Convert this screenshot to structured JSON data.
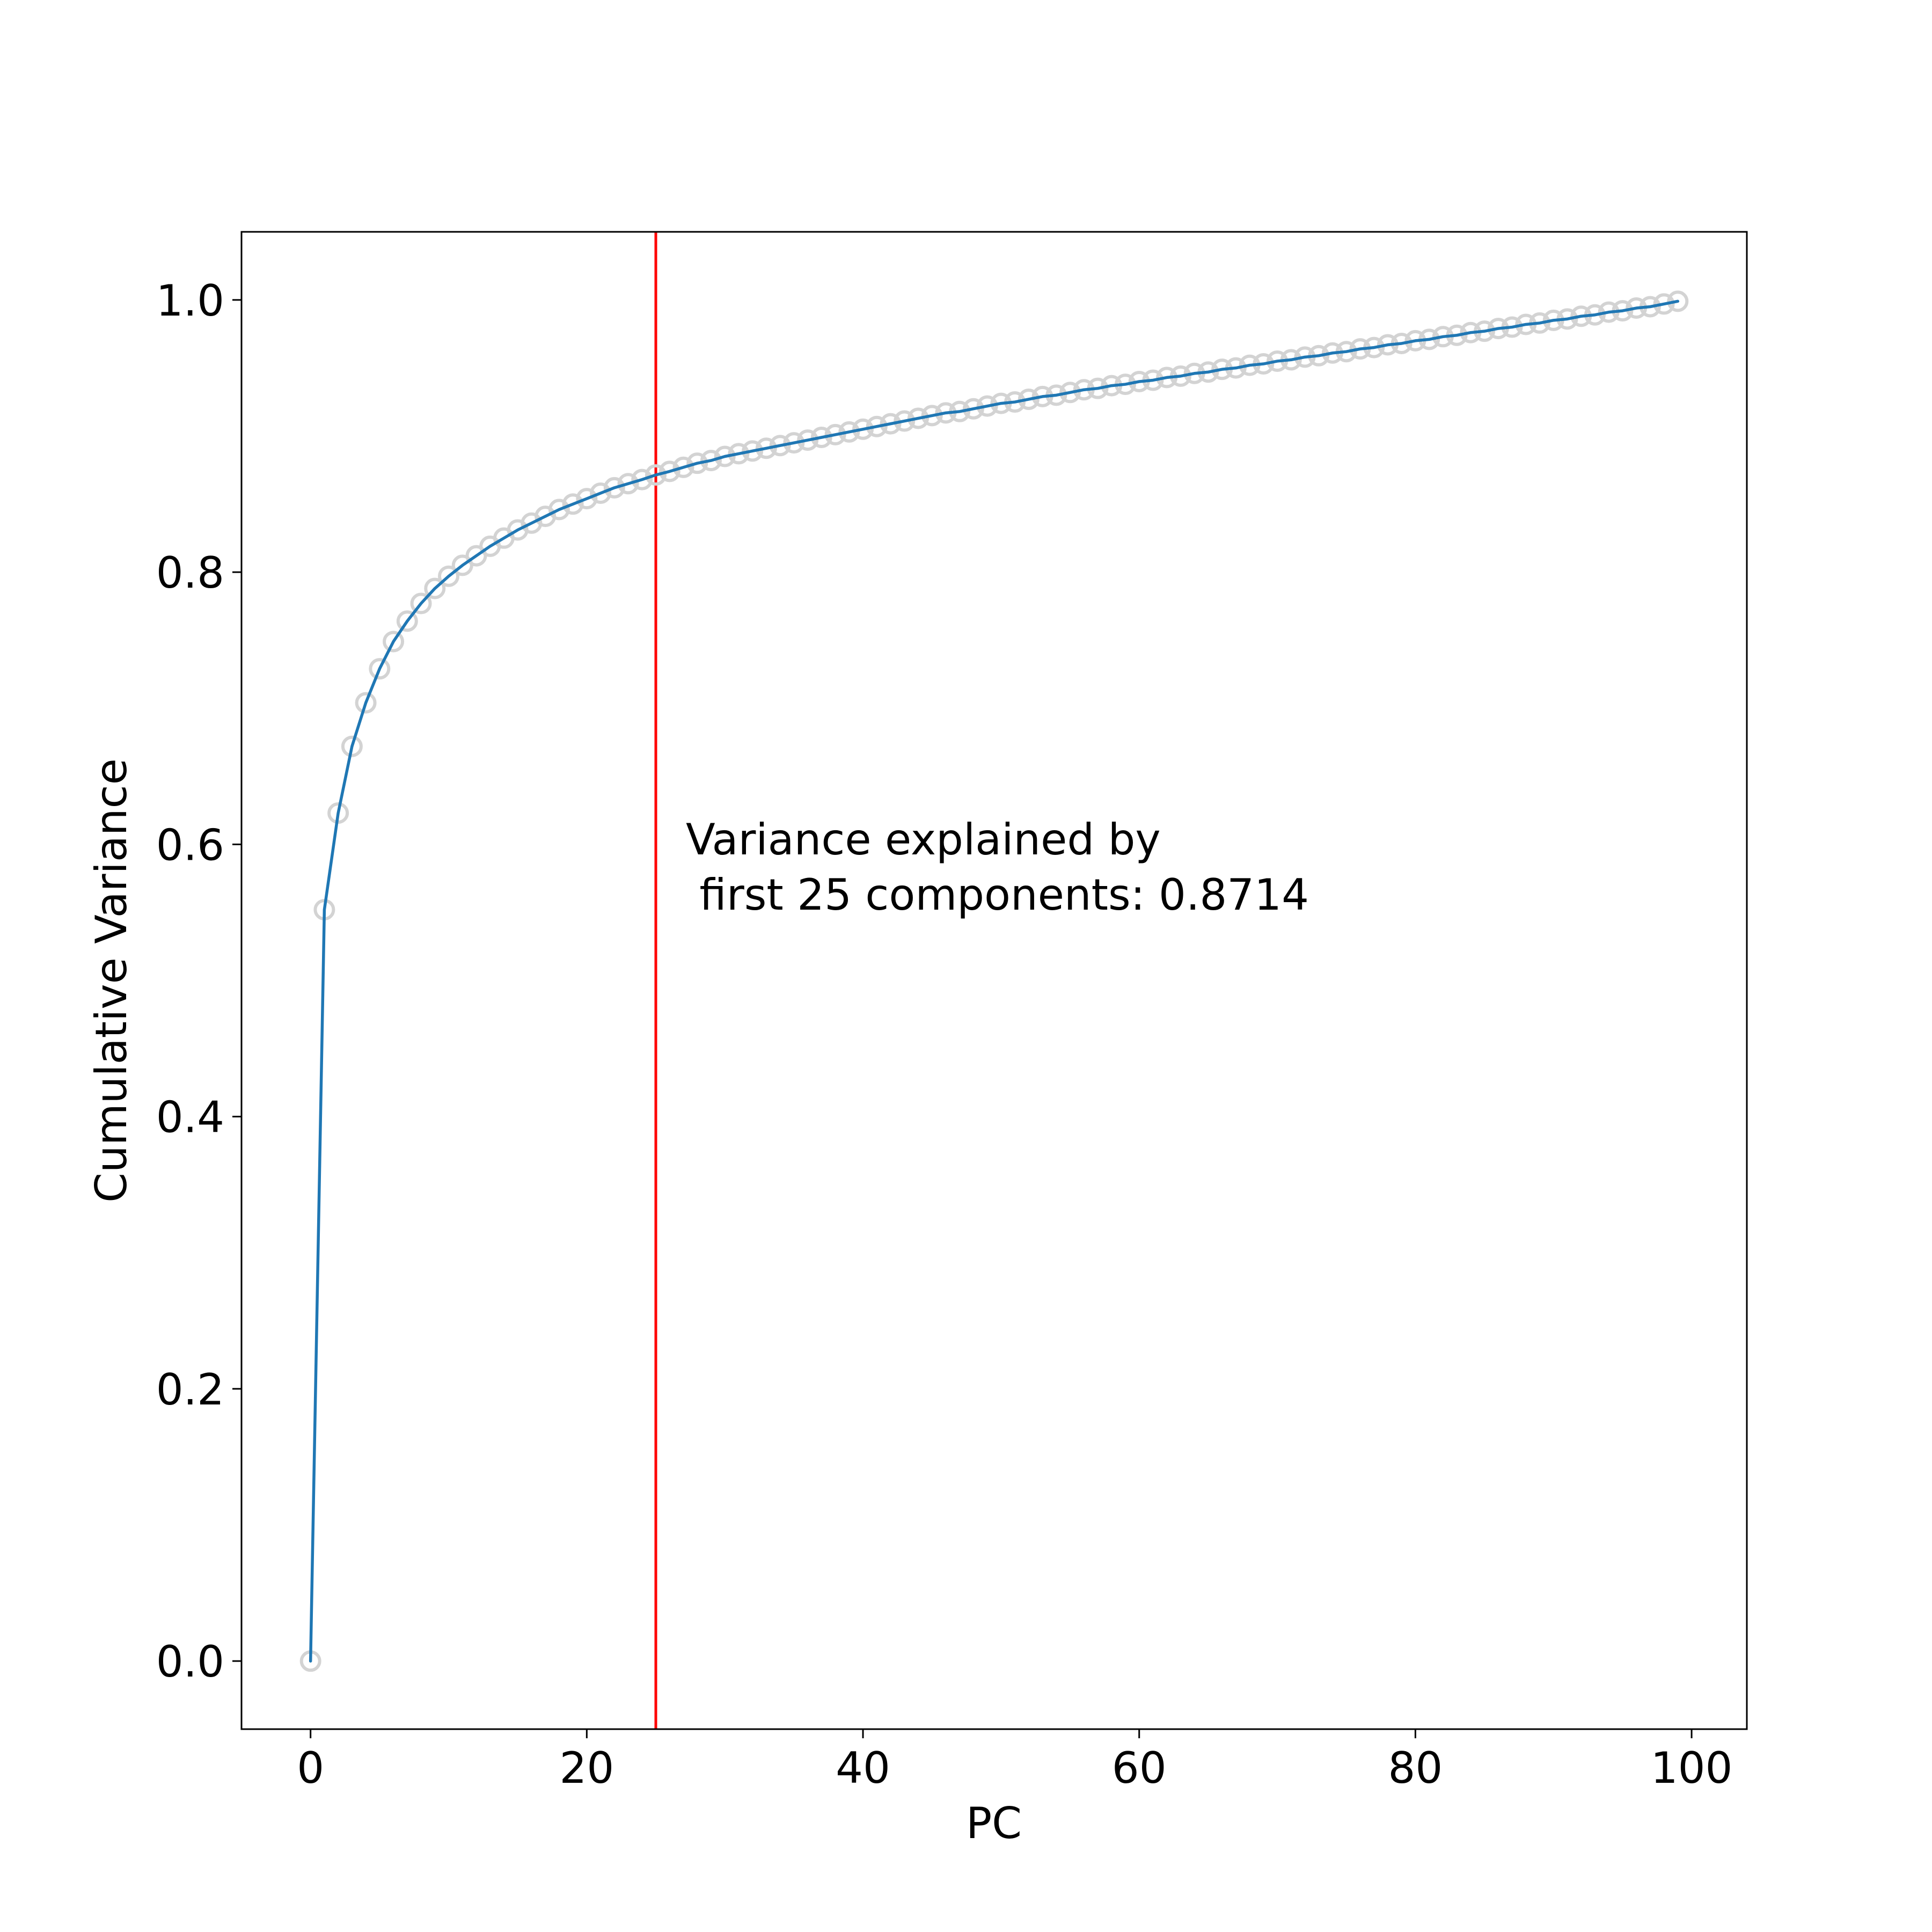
{
  "chart_data": {
    "type": "line",
    "title": "",
    "xlabel": "PC",
    "ylabel": "Cumulative Variance",
    "xlim": [
      -5,
      104
    ],
    "ylim": [
      -0.05,
      1.05
    ],
    "xticks": [
      0,
      20,
      40,
      60,
      80,
      100
    ],
    "xtick_labels": [
      "0",
      "20",
      "40",
      "60",
      "80",
      "100"
    ],
    "yticks": [
      0.0,
      0.2,
      0.4,
      0.6,
      0.8,
      1.0
    ],
    "ytick_labels": [
      "0.0",
      "0.2",
      "0.4",
      "0.6",
      "0.8",
      "1.0"
    ],
    "grid": false,
    "line_color": "#1f77b4",
    "marker_color": "#d3d3d3",
    "vline": {
      "x": 25,
      "color": "#ff0000"
    },
    "annotation": {
      "line1": "Variance explained by",
      "line2": " first 25 components: 0.8714"
    },
    "series": [
      {
        "x": [
          0,
          1,
          2,
          3,
          4,
          5,
          6,
          7,
          8,
          9,
          10,
          11,
          12,
          13,
          14,
          15,
          16,
          17,
          18,
          19,
          20,
          21,
          22,
          23,
          24,
          25,
          26,
          27,
          28,
          29,
          30,
          31,
          32,
          33,
          34,
          35,
          36,
          37,
          38,
          39,
          40,
          41,
          42,
          43,
          44,
          45,
          46,
          47,
          48,
          49,
          50,
          51,
          52,
          53,
          54,
          55,
          56,
          57,
          58,
          59,
          60,
          61,
          62,
          63,
          64,
          65,
          66,
          67,
          68,
          69,
          70,
          71,
          72,
          73,
          74,
          75,
          76,
          77,
          78,
          79,
          80,
          81,
          82,
          83,
          84,
          85,
          86,
          87,
          88,
          89,
          90,
          91,
          92,
          93,
          94,
          95,
          96,
          97,
          98,
          99
        ],
        "y": [
          0.0,
          0.552,
          0.623,
          0.672,
          0.704,
          0.729,
          0.749,
          0.764,
          0.777,
          0.788,
          0.797,
          0.805,
          0.812,
          0.819,
          0.825,
          0.831,
          0.836,
          0.841,
          0.846,
          0.85,
          0.854,
          0.858,
          0.862,
          0.865,
          0.868,
          0.8714,
          0.874,
          0.877,
          0.88,
          0.882,
          0.885,
          0.887,
          0.889,
          0.891,
          0.893,
          0.895,
          0.897,
          0.899,
          0.901,
          0.903,
          0.905,
          0.907,
          0.909,
          0.911,
          0.913,
          0.915,
          0.917,
          0.918,
          0.92,
          0.922,
          0.924,
          0.925,
          0.927,
          0.929,
          0.93,
          0.932,
          0.934,
          0.935,
          0.937,
          0.938,
          0.94,
          0.941,
          0.943,
          0.944,
          0.946,
          0.947,
          0.949,
          0.95,
          0.952,
          0.953,
          0.955,
          0.956,
          0.958,
          0.959,
          0.961,
          0.962,
          0.964,
          0.965,
          0.967,
          0.968,
          0.97,
          0.971,
          0.973,
          0.974,
          0.976,
          0.977,
          0.979,
          0.98,
          0.982,
          0.983,
          0.985,
          0.986,
          0.988,
          0.989,
          0.991,
          0.992,
          0.994,
          0.995,
          0.997,
          0.999
        ]
      }
    ]
  }
}
